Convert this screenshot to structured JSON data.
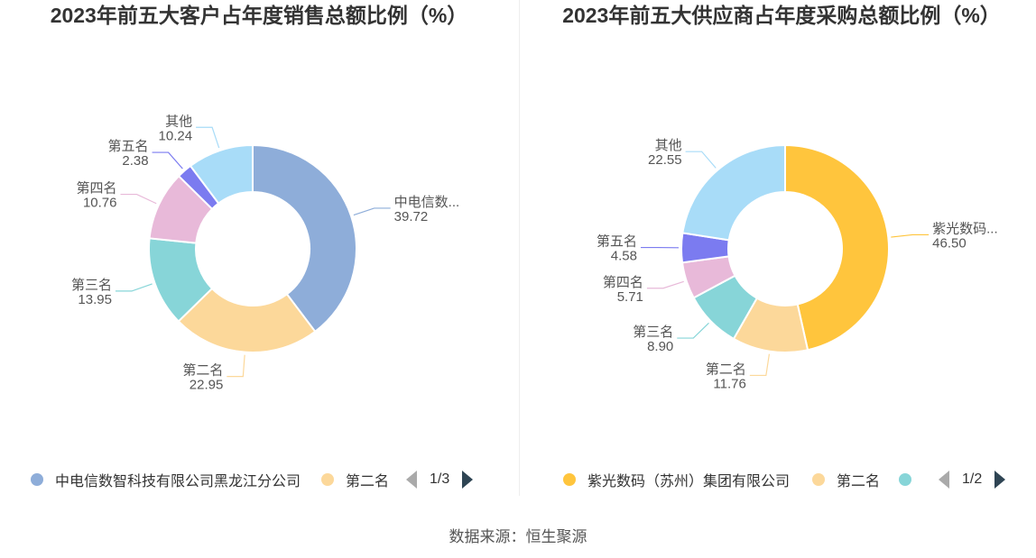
{
  "chart_data": [
    {
      "type": "pie",
      "title": "2023年前五大客户占年度销售总额比例（%）",
      "categories": [
        "中电信数智科技有限公司黑龙江分公司",
        "第二名",
        "第三名",
        "第四名",
        "第五名",
        "其他"
      ],
      "display_labels": [
        "中电信数...",
        "第二名",
        "第三名",
        "第四名",
        "第五名",
        "其他"
      ],
      "values": [
        39.72,
        22.95,
        13.95,
        10.76,
        2.38,
        10.24
      ],
      "value_labels": [
        "39.72",
        "22.95",
        "13.95",
        "10.76",
        "2.38",
        "10.24"
      ],
      "colors": [
        "#8eadd9",
        "#fcd89a",
        "#87d5d8",
        "#e8b9d9",
        "#7b7bf0",
        "#a8dcf8"
      ],
      "legend": {
        "items": [
          {
            "label": "中电信数智科技有限公司黑龙江分公司",
            "color": "#8eadd9"
          },
          {
            "label": "第二名",
            "color": "#fcd89a"
          }
        ],
        "page": "1/3"
      }
    },
    {
      "type": "pie",
      "title": "2023年前五大供应商占年度采购总额比例（%）",
      "categories": [
        "紫光数码（苏州）集团有限公司",
        "第二名",
        "第三名",
        "第四名",
        "第五名",
        "其他"
      ],
      "display_labels": [
        "紫光数码...",
        "第二名",
        "第三名",
        "第四名",
        "第五名",
        "其他"
      ],
      "values": [
        46.5,
        11.76,
        8.9,
        5.71,
        4.58,
        22.55
      ],
      "value_labels": [
        "46.50",
        "11.76",
        "8.90",
        "5.71",
        "4.58",
        "22.55"
      ],
      "colors": [
        "#ffc53d",
        "#fcd89a",
        "#87d5d8",
        "#e8b9d9",
        "#7b7bf0",
        "#a8dcf8"
      ],
      "legend": {
        "items": [
          {
            "label": "紫光数码（苏州）集团有限公司",
            "color": "#ffc53d"
          },
          {
            "label": "第二名",
            "color": "#fcd89a"
          },
          {
            "label": "",
            "color": "#87d5d8"
          }
        ],
        "page": "1/2"
      }
    }
  ],
  "source": "数据来源：恒生聚源"
}
